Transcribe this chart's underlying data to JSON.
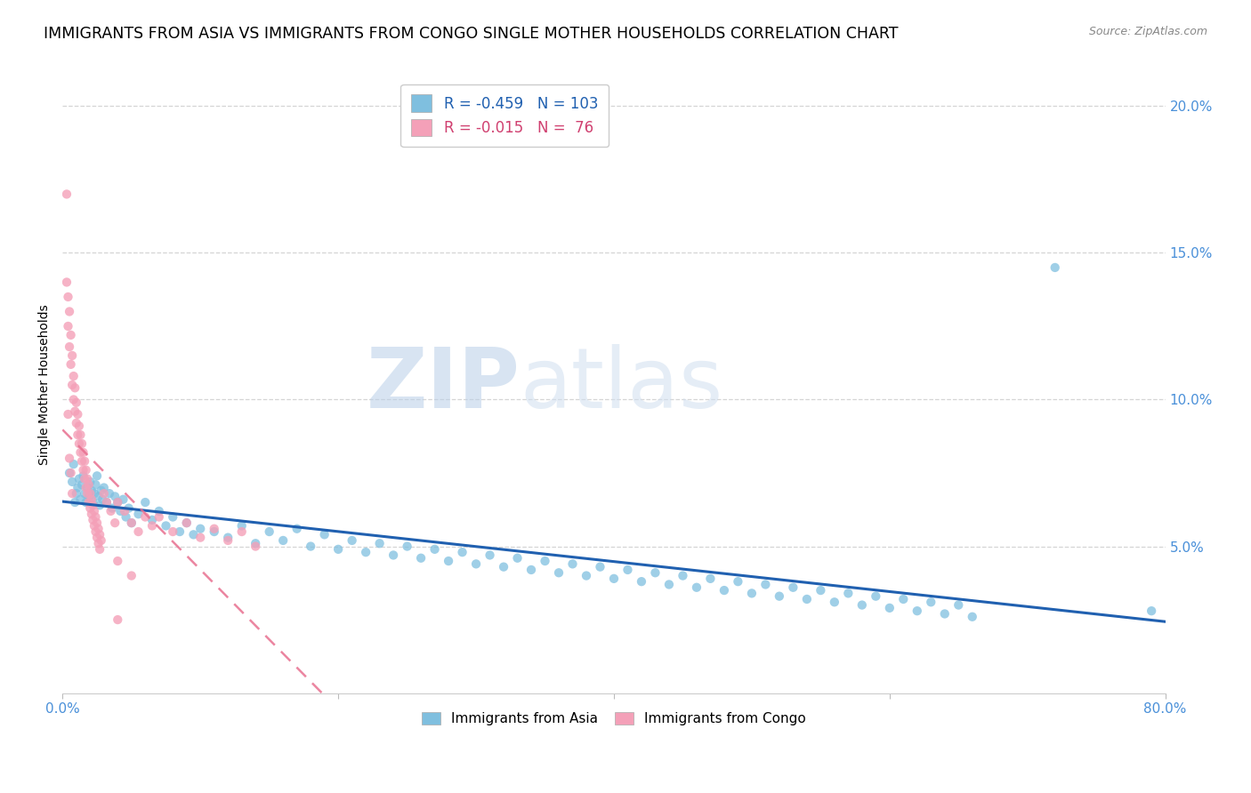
{
  "title": "IMMIGRANTS FROM ASIA VS IMMIGRANTS FROM CONGO SINGLE MOTHER HOUSEHOLDS CORRELATION CHART",
  "source": "Source: ZipAtlas.com",
  "ylabel": "Single Mother Households",
  "xlim": [
    0.0,
    0.8
  ],
  "ylim": [
    0.0,
    0.21
  ],
  "yticks": [
    0.05,
    0.1,
    0.15,
    0.2
  ],
  "ytick_labels": [
    "5.0%",
    "10.0%",
    "15.0%",
    "20.0%"
  ],
  "xticks": [
    0.0,
    0.2,
    0.4,
    0.6,
    0.8
  ],
  "xtick_labels": [
    "0.0%",
    "",
    "",
    "",
    "80.0%"
  ],
  "legend_asia_R": "-0.459",
  "legend_asia_N": "103",
  "legend_congo_R": "-0.015",
  "legend_congo_N": " 76",
  "color_asia": "#7fbfdf",
  "color_congo": "#f4a0b8",
  "trendline_asia_color": "#2060b0",
  "trendline_congo_color": "#e87090",
  "watermark_zip": "ZIP",
  "watermark_atlas": "atlas",
  "title_fontsize": 12.5,
  "axis_label_fontsize": 10,
  "tick_fontsize": 11,
  "tick_color": "#4a90d9",
  "asia_x": [
    0.005,
    0.007,
    0.008,
    0.009,
    0.01,
    0.011,
    0.012,
    0.013,
    0.014,
    0.015,
    0.016,
    0.017,
    0.018,
    0.019,
    0.02,
    0.021,
    0.022,
    0.023,
    0.024,
    0.025,
    0.026,
    0.027,
    0.028,
    0.029,
    0.03,
    0.032,
    0.034,
    0.036,
    0.038,
    0.04,
    0.042,
    0.044,
    0.046,
    0.048,
    0.05,
    0.055,
    0.06,
    0.065,
    0.07,
    0.075,
    0.08,
    0.085,
    0.09,
    0.095,
    0.1,
    0.11,
    0.12,
    0.13,
    0.14,
    0.15,
    0.16,
    0.17,
    0.18,
    0.19,
    0.2,
    0.21,
    0.22,
    0.23,
    0.24,
    0.25,
    0.26,
    0.27,
    0.28,
    0.29,
    0.3,
    0.31,
    0.32,
    0.33,
    0.34,
    0.35,
    0.36,
    0.37,
    0.38,
    0.39,
    0.4,
    0.41,
    0.42,
    0.43,
    0.44,
    0.45,
    0.46,
    0.47,
    0.48,
    0.49,
    0.5,
    0.51,
    0.52,
    0.53,
    0.54,
    0.55,
    0.56,
    0.57,
    0.58,
    0.59,
    0.6,
    0.61,
    0.62,
    0.63,
    0.64,
    0.65,
    0.66,
    0.72,
    0.79
  ],
  "asia_y": [
    0.075,
    0.072,
    0.078,
    0.065,
    0.068,
    0.07,
    0.073,
    0.066,
    0.071,
    0.074,
    0.068,
    0.065,
    0.07,
    0.067,
    0.072,
    0.069,
    0.065,
    0.068,
    0.071,
    0.074,
    0.067,
    0.064,
    0.069,
    0.066,
    0.07,
    0.065,
    0.068,
    0.063,
    0.067,
    0.065,
    0.062,
    0.066,
    0.06,
    0.063,
    0.058,
    0.061,
    0.065,
    0.059,
    0.062,
    0.057,
    0.06,
    0.055,
    0.058,
    0.054,
    0.056,
    0.055,
    0.053,
    0.057,
    0.051,
    0.055,
    0.052,
    0.056,
    0.05,
    0.054,
    0.049,
    0.052,
    0.048,
    0.051,
    0.047,
    0.05,
    0.046,
    0.049,
    0.045,
    0.048,
    0.044,
    0.047,
    0.043,
    0.046,
    0.042,
    0.045,
    0.041,
    0.044,
    0.04,
    0.043,
    0.039,
    0.042,
    0.038,
    0.041,
    0.037,
    0.04,
    0.036,
    0.039,
    0.035,
    0.038,
    0.034,
    0.037,
    0.033,
    0.036,
    0.032,
    0.035,
    0.031,
    0.034,
    0.03,
    0.033,
    0.029,
    0.032,
    0.028,
    0.031,
    0.027,
    0.03,
    0.026,
    0.145,
    0.028
  ],
  "congo_x": [
    0.003,
    0.004,
    0.004,
    0.005,
    0.005,
    0.006,
    0.006,
    0.007,
    0.007,
    0.008,
    0.008,
    0.009,
    0.009,
    0.01,
    0.01,
    0.011,
    0.011,
    0.012,
    0.012,
    0.013,
    0.013,
    0.014,
    0.014,
    0.015,
    0.015,
    0.016,
    0.016,
    0.017,
    0.017,
    0.018,
    0.018,
    0.019,
    0.019,
    0.02,
    0.02,
    0.021,
    0.021,
    0.022,
    0.022,
    0.023,
    0.023,
    0.024,
    0.024,
    0.025,
    0.025,
    0.026,
    0.026,
    0.027,
    0.027,
    0.028,
    0.03,
    0.032,
    0.035,
    0.038,
    0.04,
    0.045,
    0.05,
    0.055,
    0.06,
    0.065,
    0.07,
    0.08,
    0.09,
    0.1,
    0.11,
    0.12,
    0.13,
    0.14,
    0.04,
    0.05,
    0.003,
    0.004,
    0.005,
    0.006,
    0.007,
    0.04
  ],
  "congo_y": [
    0.14,
    0.135,
    0.125,
    0.13,
    0.118,
    0.122,
    0.112,
    0.115,
    0.105,
    0.108,
    0.1,
    0.104,
    0.096,
    0.099,
    0.092,
    0.095,
    0.088,
    0.091,
    0.085,
    0.088,
    0.082,
    0.085,
    0.079,
    0.082,
    0.076,
    0.079,
    0.073,
    0.076,
    0.07,
    0.073,
    0.068,
    0.071,
    0.065,
    0.068,
    0.063,
    0.066,
    0.061,
    0.064,
    0.059,
    0.062,
    0.057,
    0.06,
    0.055,
    0.058,
    0.053,
    0.056,
    0.051,
    0.054,
    0.049,
    0.052,
    0.068,
    0.065,
    0.062,
    0.058,
    0.065,
    0.062,
    0.058,
    0.055,
    0.06,
    0.057,
    0.06,
    0.055,
    0.058,
    0.053,
    0.056,
    0.052,
    0.055,
    0.05,
    0.045,
    0.04,
    0.17,
    0.095,
    0.08,
    0.075,
    0.068,
    0.025
  ]
}
